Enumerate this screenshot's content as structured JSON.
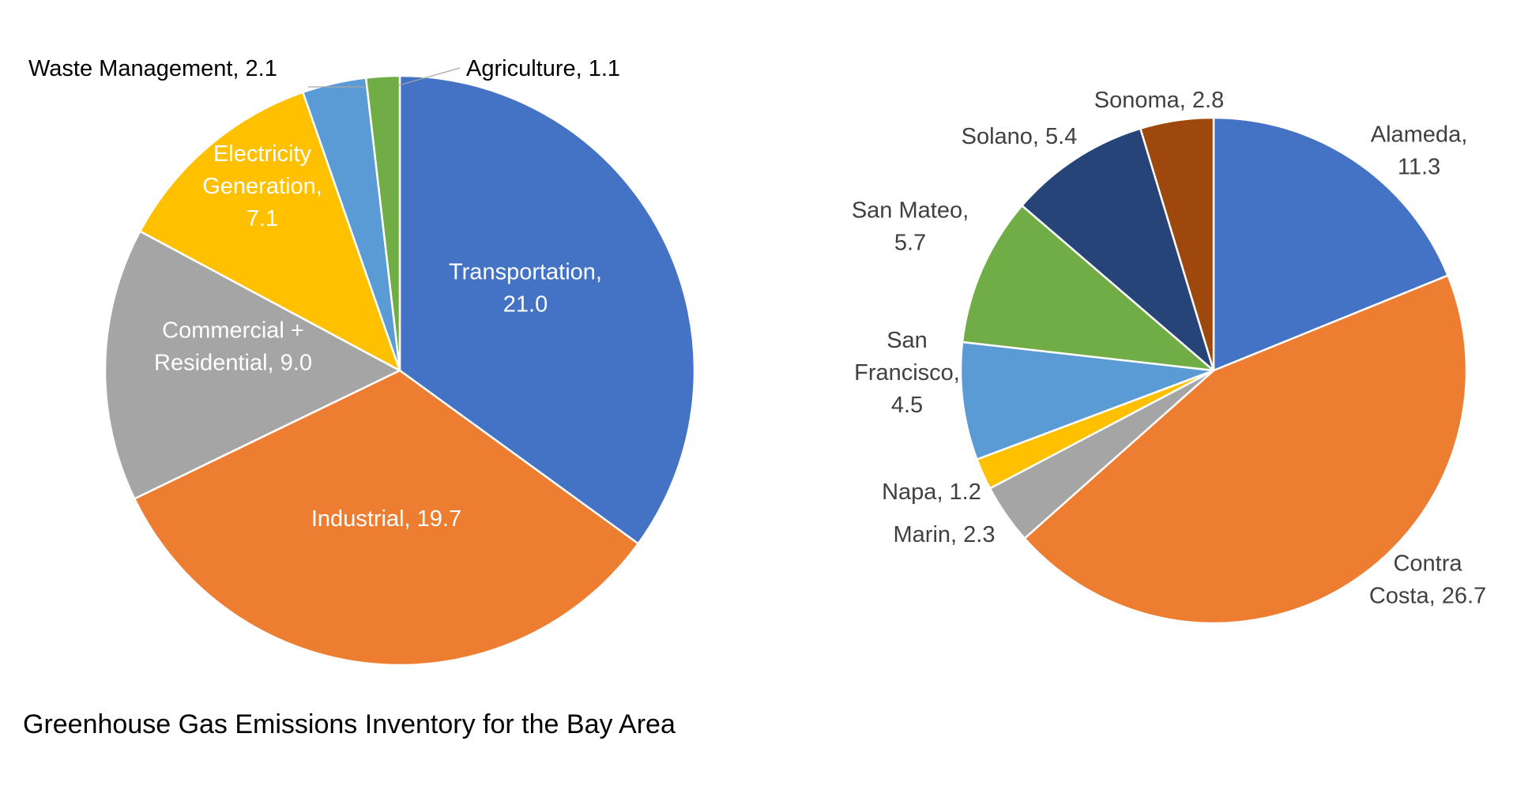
{
  "caption": "Greenhouse Gas Emissions Inventory for the Bay Area",
  "chart_data": [
    {
      "type": "pie",
      "title": "",
      "start_angle_deg": 0,
      "direction": "clockwise",
      "labels": [
        "Transportation",
        "Industrial",
        "Commercial + Residential",
        "Electricity Generation",
        "Waste Management",
        "Agriculture"
      ],
      "values": [
        21.0,
        19.7,
        9.0,
        7.1,
        2.1,
        1.1
      ],
      "colors": [
        "#4472C4",
        "#ED7D31",
        "#A5A5A5",
        "#FFC000",
        "#5B9BD5",
        "#70AD47"
      ],
      "data_labels": [
        {
          "lines": [
            "Transportation,",
            "21.0"
          ],
          "color": "#ffffff"
        },
        {
          "lines": [
            "Industrial, 19.7"
          ],
          "color": "#ffffff"
        },
        {
          "lines": [
            "Commercial +",
            "Residential, 9.0"
          ],
          "color": "#ffffff"
        },
        {
          "lines": [
            "Electricity",
            "Generation,",
            "7.1"
          ],
          "color": "#ffffff"
        },
        {
          "lines": [
            "Waste Management, 2.1"
          ],
          "color": "#000000"
        },
        {
          "lines": [
            "Agriculture, 1.1"
          ],
          "color": "#000000"
        }
      ]
    },
    {
      "type": "pie",
      "title": "",
      "start_angle_deg": 0,
      "direction": "clockwise",
      "labels": [
        "Alameda",
        "Contra Costa",
        "Marin",
        "Napa",
        "San Francisco",
        "San Mateo",
        "Solano",
        "Sonoma"
      ],
      "values": [
        11.3,
        26.7,
        2.3,
        1.2,
        4.5,
        5.7,
        5.4,
        2.8
      ],
      "colors": [
        "#4472C4",
        "#ED7D31",
        "#A5A5A5",
        "#FFC000",
        "#5B9BD5",
        "#70AD47",
        "#264478",
        "#9E480E"
      ],
      "data_labels": [
        {
          "lines": [
            "Alameda,",
            "11.3"
          ],
          "color": "#404040"
        },
        {
          "lines": [
            "Contra",
            "Costa, 26.7"
          ],
          "color": "#404040"
        },
        {
          "lines": [
            "Marin, 2.3"
          ],
          "color": "#404040"
        },
        {
          "lines": [
            "Napa, 1.2"
          ],
          "color": "#404040"
        },
        {
          "lines": [
            "San",
            "Francisco,",
            "4.5"
          ],
          "color": "#404040"
        },
        {
          "lines": [
            "San Mateo,",
            "5.7"
          ],
          "color": "#404040"
        },
        {
          "lines": [
            "Solano, 5.4"
          ],
          "color": "#404040"
        },
        {
          "lines": [
            "Sonoma, 2.8"
          ],
          "color": "#404040"
        }
      ]
    }
  ]
}
